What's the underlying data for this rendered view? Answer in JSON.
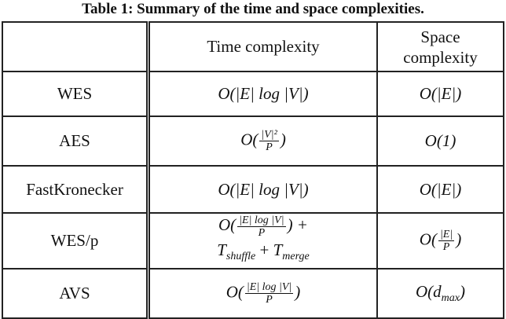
{
  "caption": "Table 1: Summary of the time and space complexities.",
  "headers": [
    "",
    "Time complexity",
    "Space complexity"
  ],
  "rows": [
    {
      "name": "WES",
      "time": {
        "pre": "O(|E| log |V|)"
      },
      "space": {
        "pre": "O(|E|)"
      }
    },
    {
      "name": "AES",
      "time": {
        "pre": "O(",
        "num": "|V|²",
        "den": "P",
        "post": ")"
      },
      "space": {
        "pre": "O(1)"
      }
    },
    {
      "name": "FastKronecker",
      "time": {
        "pre": "O(|E| log |V|)"
      },
      "space": {
        "pre": "O(|E|)"
      }
    },
    {
      "name": "WES/p",
      "time": {
        "pre": "O(",
        "num": "|E| log |V|",
        "den": "P",
        "post": ") +",
        "line2_a": "T",
        "line2_a_sub": "shuffle",
        "line2_plus": " + ",
        "line2_b": "T",
        "line2_b_sub": "merge"
      },
      "space": {
        "pre": "O(",
        "num": "|E|",
        "den": "P",
        "post": ")"
      }
    },
    {
      "name": "AVS",
      "time": {
        "pre": "O(",
        "num": "|E| log |V|",
        "den": "P",
        "post": ")"
      },
      "space": {
        "pre": "O(d",
        "sub": "max",
        "post": ")"
      }
    }
  ]
}
